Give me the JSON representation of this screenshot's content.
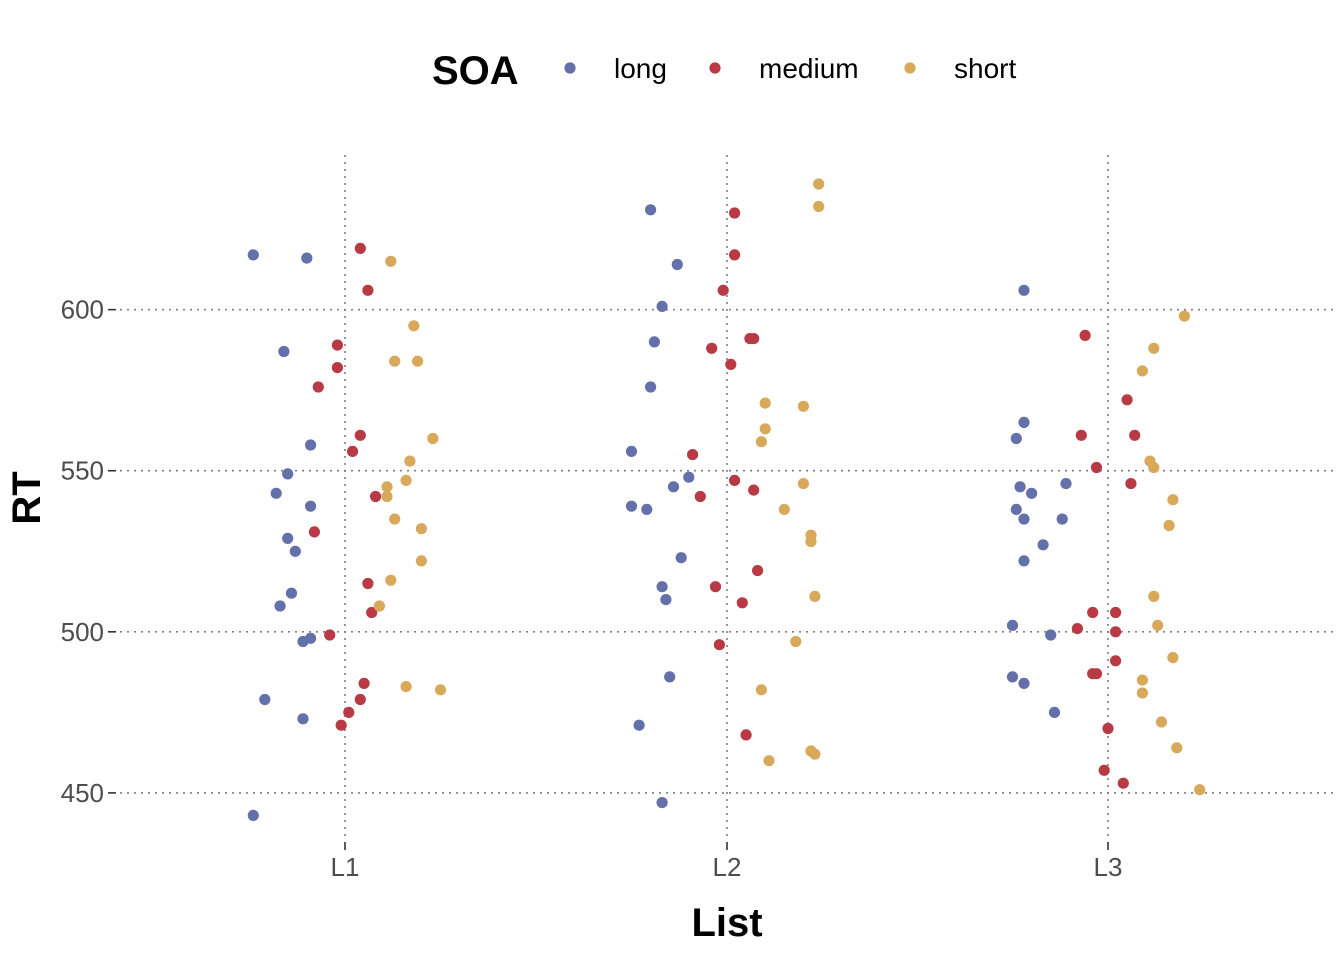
{
  "chart_data": {
    "type": "scatter",
    "title": "",
    "xlabel": "List",
    "ylabel": "RT",
    "categories": [
      "L1",
      "L2",
      "L3"
    ],
    "yticks": [
      "450",
      "500",
      "550",
      "600"
    ],
    "ylim": [
      436,
      648
    ],
    "grid": "dotted",
    "legend": {
      "title": "SOA",
      "position": "top"
    },
    "series": [
      {
        "name": "long",
        "color": "#6470aa",
        "points": [
          {
            "x": "L1",
            "jitter": -0.24,
            "y": 617
          },
          {
            "x": "L1",
            "jitter": -0.1,
            "y": 616
          },
          {
            "x": "L1",
            "jitter": -0.16,
            "y": 587
          },
          {
            "x": "L1",
            "jitter": -0.09,
            "y": 558
          },
          {
            "x": "L1",
            "jitter": -0.15,
            "y": 549
          },
          {
            "x": "L1",
            "jitter": -0.18,
            "y": 543
          },
          {
            "x": "L1",
            "jitter": -0.09,
            "y": 539
          },
          {
            "x": "L1",
            "jitter": -0.15,
            "y": 529
          },
          {
            "x": "L1",
            "jitter": -0.13,
            "y": 525
          },
          {
            "x": "L1",
            "jitter": -0.14,
            "y": 512
          },
          {
            "x": "L1",
            "jitter": -0.17,
            "y": 508
          },
          {
            "x": "L1",
            "jitter": -0.09,
            "y": 498
          },
          {
            "x": "L1",
            "jitter": -0.11,
            "y": 497
          },
          {
            "x": "L1",
            "jitter": -0.21,
            "y": 479
          },
          {
            "x": "L1",
            "jitter": -0.11,
            "y": 473
          },
          {
            "x": "L1",
            "jitter": -0.24,
            "y": 443
          },
          {
            "x": "L2",
            "jitter": -0.2,
            "y": 631
          },
          {
            "x": "L2",
            "jitter": -0.13,
            "y": 614
          },
          {
            "x": "L2",
            "jitter": -0.17,
            "y": 601
          },
          {
            "x": "L2",
            "jitter": -0.19,
            "y": 590
          },
          {
            "x": "L2",
            "jitter": -0.2,
            "y": 576
          },
          {
            "x": "L2",
            "jitter": -0.25,
            "y": 556
          },
          {
            "x": "L2",
            "jitter": -0.1,
            "y": 548
          },
          {
            "x": "L2",
            "jitter": -0.14,
            "y": 545
          },
          {
            "x": "L2",
            "jitter": -0.25,
            "y": 539
          },
          {
            "x": "L2",
            "jitter": -0.21,
            "y": 538
          },
          {
            "x": "L2",
            "jitter": -0.12,
            "y": 523
          },
          {
            "x": "L2",
            "jitter": -0.17,
            "y": 514
          },
          {
            "x": "L2",
            "jitter": -0.16,
            "y": 510
          },
          {
            "x": "L2",
            "jitter": -0.15,
            "y": 486
          },
          {
            "x": "L2",
            "jitter": -0.23,
            "y": 471
          },
          {
            "x": "L2",
            "jitter": -0.17,
            "y": 447
          },
          {
            "x": "L3",
            "jitter": -0.22,
            "y": 606
          },
          {
            "x": "L3",
            "jitter": -0.22,
            "y": 565
          },
          {
            "x": "L3",
            "jitter": -0.24,
            "y": 560
          },
          {
            "x": "L3",
            "jitter": -0.23,
            "y": 545
          },
          {
            "x": "L3",
            "jitter": -0.2,
            "y": 543
          },
          {
            "x": "L3",
            "jitter": -0.11,
            "y": 546
          },
          {
            "x": "L3",
            "jitter": -0.24,
            "y": 538
          },
          {
            "x": "L3",
            "jitter": -0.22,
            "y": 535
          },
          {
            "x": "L3",
            "jitter": -0.12,
            "y": 535
          },
          {
            "x": "L3",
            "jitter": -0.17,
            "y": 527
          },
          {
            "x": "L3",
            "jitter": -0.22,
            "y": 522
          },
          {
            "x": "L3",
            "jitter": -0.25,
            "y": 502
          },
          {
            "x": "L3",
            "jitter": -0.15,
            "y": 499
          },
          {
            "x": "L3",
            "jitter": -0.25,
            "y": 486
          },
          {
            "x": "L3",
            "jitter": -0.22,
            "y": 484
          },
          {
            "x": "L3",
            "jitter": -0.14,
            "y": 475
          }
        ]
      },
      {
        "name": "medium",
        "color": "#b83a45",
        "points": [
          {
            "x": "L1",
            "jitter": 0.04,
            "y": 619
          },
          {
            "x": "L1",
            "jitter": 0.06,
            "y": 606
          },
          {
            "x": "L1",
            "jitter": -0.02,
            "y": 589
          },
          {
            "x": "L1",
            "jitter": -0.02,
            "y": 582
          },
          {
            "x": "L1",
            "jitter": -0.07,
            "y": 576
          },
          {
            "x": "L1",
            "jitter": 0.04,
            "y": 561
          },
          {
            "x": "L1",
            "jitter": 0.02,
            "y": 556
          },
          {
            "x": "L1",
            "jitter": 0.08,
            "y": 542
          },
          {
            "x": "L1",
            "jitter": -0.08,
            "y": 531
          },
          {
            "x": "L1",
            "jitter": 0.06,
            "y": 515
          },
          {
            "x": "L1",
            "jitter": 0.07,
            "y": 506
          },
          {
            "x": "L1",
            "jitter": -0.04,
            "y": 499
          },
          {
            "x": "L1",
            "jitter": 0.05,
            "y": 484
          },
          {
            "x": "L1",
            "jitter": 0.04,
            "y": 479
          },
          {
            "x": "L1",
            "jitter": 0.01,
            "y": 475
          },
          {
            "x": "L1",
            "jitter": -0.01,
            "y": 471
          },
          {
            "x": "L2",
            "jitter": 0.02,
            "y": 630
          },
          {
            "x": "L2",
            "jitter": 0.02,
            "y": 617
          },
          {
            "x": "L2",
            "jitter": -0.01,
            "y": 606
          },
          {
            "x": "L2",
            "jitter": 0.06,
            "y": 591
          },
          {
            "x": "L2",
            "jitter": 0.07,
            "y": 591
          },
          {
            "x": "L2",
            "jitter": -0.04,
            "y": 588
          },
          {
            "x": "L2",
            "jitter": 0.01,
            "y": 583
          },
          {
            "x": "L2",
            "jitter": -0.09,
            "y": 555
          },
          {
            "x": "L2",
            "jitter": 0.02,
            "y": 547
          },
          {
            "x": "L2",
            "jitter": 0.07,
            "y": 544
          },
          {
            "x": "L2",
            "jitter": -0.07,
            "y": 542
          },
          {
            "x": "L2",
            "jitter": 0.08,
            "y": 519
          },
          {
            "x": "L2",
            "jitter": -0.03,
            "y": 514
          },
          {
            "x": "L2",
            "jitter": 0.04,
            "y": 509
          },
          {
            "x": "L2",
            "jitter": -0.02,
            "y": 496
          },
          {
            "x": "L2",
            "jitter": 0.05,
            "y": 468
          },
          {
            "x": "L3",
            "jitter": -0.06,
            "y": 592
          },
          {
            "x": "L3",
            "jitter": 0.05,
            "y": 572
          },
          {
            "x": "L3",
            "jitter": -0.07,
            "y": 561
          },
          {
            "x": "L3",
            "jitter": 0.07,
            "y": 561
          },
          {
            "x": "L3",
            "jitter": -0.03,
            "y": 551
          },
          {
            "x": "L3",
            "jitter": 0.06,
            "y": 546
          },
          {
            "x": "L3",
            "jitter": -0.04,
            "y": 506
          },
          {
            "x": "L3",
            "jitter": 0.02,
            "y": 506
          },
          {
            "x": "L3",
            "jitter": -0.08,
            "y": 501
          },
          {
            "x": "L3",
            "jitter": 0.02,
            "y": 500
          },
          {
            "x": "L3",
            "jitter": 0.02,
            "y": 491
          },
          {
            "x": "L3",
            "jitter": -0.04,
            "y": 487
          },
          {
            "x": "L3",
            "jitter": -0.03,
            "y": 487
          },
          {
            "x": "L3",
            "jitter": 0.0,
            "y": 470
          },
          {
            "x": "L3",
            "jitter": -0.01,
            "y": 457
          },
          {
            "x": "L3",
            "jitter": 0.04,
            "y": 453
          }
        ]
      },
      {
        "name": "short",
        "color": "#d9a95b",
        "points": [
          {
            "x": "L1",
            "jitter": 0.12,
            "y": 615
          },
          {
            "x": "L1",
            "jitter": 0.18,
            "y": 595
          },
          {
            "x": "L1",
            "jitter": 0.13,
            "y": 584
          },
          {
            "x": "L1",
            "jitter": 0.19,
            "y": 584
          },
          {
            "x": "L1",
            "jitter": 0.23,
            "y": 560
          },
          {
            "x": "L1",
            "jitter": 0.17,
            "y": 553
          },
          {
            "x": "L1",
            "jitter": 0.16,
            "y": 547
          },
          {
            "x": "L1",
            "jitter": 0.11,
            "y": 545
          },
          {
            "x": "L1",
            "jitter": 0.11,
            "y": 542
          },
          {
            "x": "L1",
            "jitter": 0.13,
            "y": 535
          },
          {
            "x": "L1",
            "jitter": 0.2,
            "y": 532
          },
          {
            "x": "L1",
            "jitter": 0.2,
            "y": 522
          },
          {
            "x": "L1",
            "jitter": 0.12,
            "y": 516
          },
          {
            "x": "L1",
            "jitter": 0.09,
            "y": 508
          },
          {
            "x": "L1",
            "jitter": 0.16,
            "y": 483
          },
          {
            "x": "L1",
            "jitter": 0.25,
            "y": 482
          },
          {
            "x": "L2",
            "jitter": 0.24,
            "y": 639
          },
          {
            "x": "L2",
            "jitter": 0.24,
            "y": 632
          },
          {
            "x": "L2",
            "jitter": 0.1,
            "y": 571
          },
          {
            "x": "L2",
            "jitter": 0.2,
            "y": 570
          },
          {
            "x": "L2",
            "jitter": 0.1,
            "y": 563
          },
          {
            "x": "L2",
            "jitter": 0.09,
            "y": 559
          },
          {
            "x": "L2",
            "jitter": 0.2,
            "y": 546
          },
          {
            "x": "L2",
            "jitter": 0.15,
            "y": 538
          },
          {
            "x": "L2",
            "jitter": 0.22,
            "y": 530
          },
          {
            "x": "L2",
            "jitter": 0.22,
            "y": 528
          },
          {
            "x": "L2",
            "jitter": 0.23,
            "y": 511
          },
          {
            "x": "L2",
            "jitter": 0.18,
            "y": 497
          },
          {
            "x": "L2",
            "jitter": 0.09,
            "y": 482
          },
          {
            "x": "L2",
            "jitter": 0.22,
            "y": 463
          },
          {
            "x": "L2",
            "jitter": 0.23,
            "y": 462
          },
          {
            "x": "L2",
            "jitter": 0.11,
            "y": 460
          },
          {
            "x": "L3",
            "jitter": 0.2,
            "y": 598
          },
          {
            "x": "L3",
            "jitter": 0.12,
            "y": 588
          },
          {
            "x": "L3",
            "jitter": 0.09,
            "y": 581
          },
          {
            "x": "L3",
            "jitter": 0.11,
            "y": 553
          },
          {
            "x": "L3",
            "jitter": 0.12,
            "y": 551
          },
          {
            "x": "L3",
            "jitter": 0.17,
            "y": 541
          },
          {
            "x": "L3",
            "jitter": 0.16,
            "y": 533
          },
          {
            "x": "L3",
            "jitter": 0.12,
            "y": 511
          },
          {
            "x": "L3",
            "jitter": 0.13,
            "y": 502
          },
          {
            "x": "L3",
            "jitter": 0.17,
            "y": 492
          },
          {
            "x": "L3",
            "jitter": 0.09,
            "y": 485
          },
          {
            "x": "L3",
            "jitter": 0.09,
            "y": 481
          },
          {
            "x": "L3",
            "jitter": 0.14,
            "y": 472
          },
          {
            "x": "L3",
            "jitter": 0.18,
            "y": 464
          },
          {
            "x": "L3",
            "jitter": 0.24,
            "y": 451
          }
        ]
      }
    ]
  }
}
